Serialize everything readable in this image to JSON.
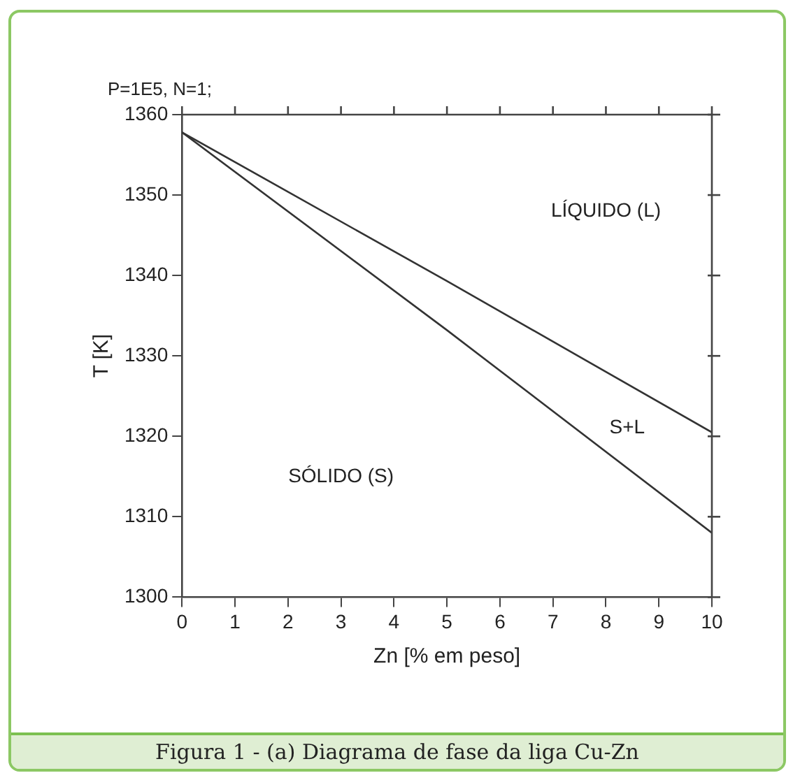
{
  "chart_data": {
    "type": "line",
    "subtitle": "P=1E5, N=1;",
    "xlabel": "Zn [% em peso]",
    "ylabel": "T [K]",
    "x": [
      0,
      5,
      10
    ],
    "series": [
      {
        "color": "#333333",
        "values": [
          1357.8,
          1339.3,
          1320.5
        ]
      },
      {
        "color": "#333333",
        "values": [
          1357.8,
          1333.2,
          1308
        ]
      }
    ],
    "xlim": [
      0,
      10
    ],
    "xticks": [
      0,
      1,
      2,
      3,
      4,
      5,
      6,
      7,
      8,
      9,
      10
    ],
    "ylim": [
      1300,
      1360
    ],
    "yticks": [
      1300,
      1310,
      1320,
      1330,
      1340,
      1350,
      1360
    ],
    "grid": false,
    "legend": false,
    "marker": "none",
    "line_style": "solid",
    "annotations": [
      "LÍQUIDO (L)",
      "S+L",
      "SÓLIDO (S)",
      "Figura 1 - (a) Diagrama de fase da liga Cu-Zn"
    ]
  }
}
